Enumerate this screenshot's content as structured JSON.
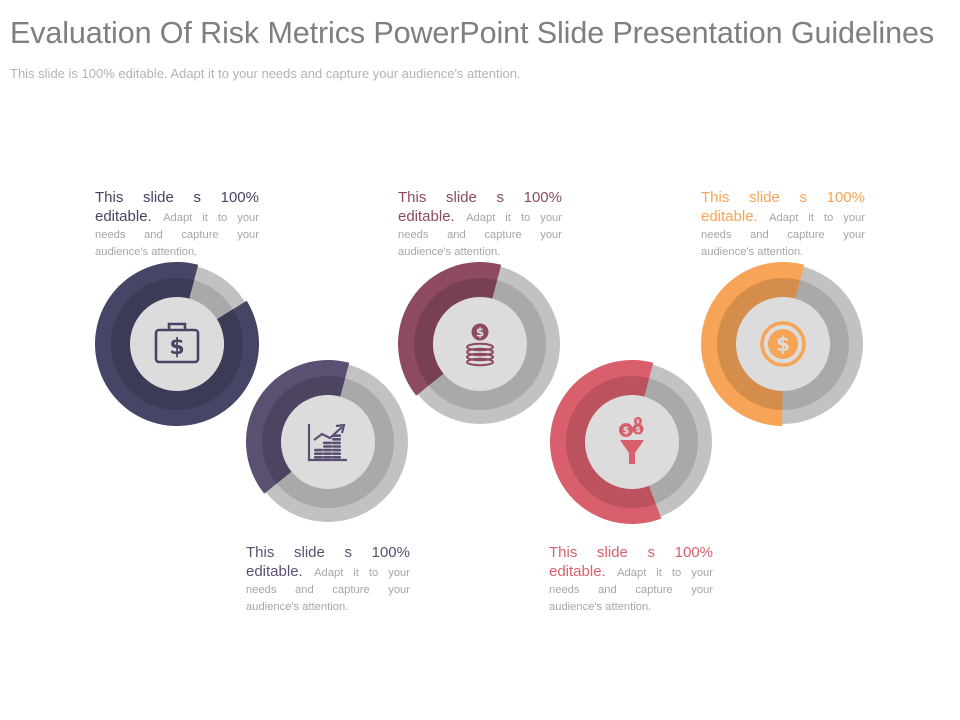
{
  "slide": {
    "title": "Evaluation Of Risk Metrics PowerPoint Slide Presentation Guidelines",
    "subtitle": "This slide is 100% editable. Adapt it to your needs and capture your audience's attention."
  },
  "items": [
    {
      "head_line1": "This slide s 100%",
      "head_line2": "editable.",
      "body": "Adapt it to your needs and capture your audience's attention.",
      "color": "#454565",
      "fill_percent": 88,
      "icon": "money-bag-icon"
    },
    {
      "head_line1": "This slide s 100%",
      "head_line2": "editable.",
      "body": "Adapt it to your needs and capture your audience's attention.",
      "color": "#5b4f72",
      "fill_percent": 40,
      "icon": "growth-chart-icon"
    },
    {
      "head_line1": "This slide s 100%",
      "head_line2": "editable.",
      "body": "Adapt it to your needs and capture your audience's attention.",
      "color": "#8d4a62",
      "fill_percent": 40,
      "icon": "coin-stack-icon"
    },
    {
      "head_line1": "This slide s 100%",
      "head_line2": "editable.",
      "body": "Adapt it to your needs and capture your audience's attention.",
      "color": "#d95f6d",
      "fill_percent": 60,
      "icon": "dollar-funnel-icon"
    },
    {
      "head_line1": "This slide s 100%",
      "head_line2": "editable.",
      "body": "Adapt it to your needs and capture your audience's attention.",
      "color": "#f7a456",
      "fill_percent": 54,
      "icon": "dollar-coin-icon"
    }
  ]
}
